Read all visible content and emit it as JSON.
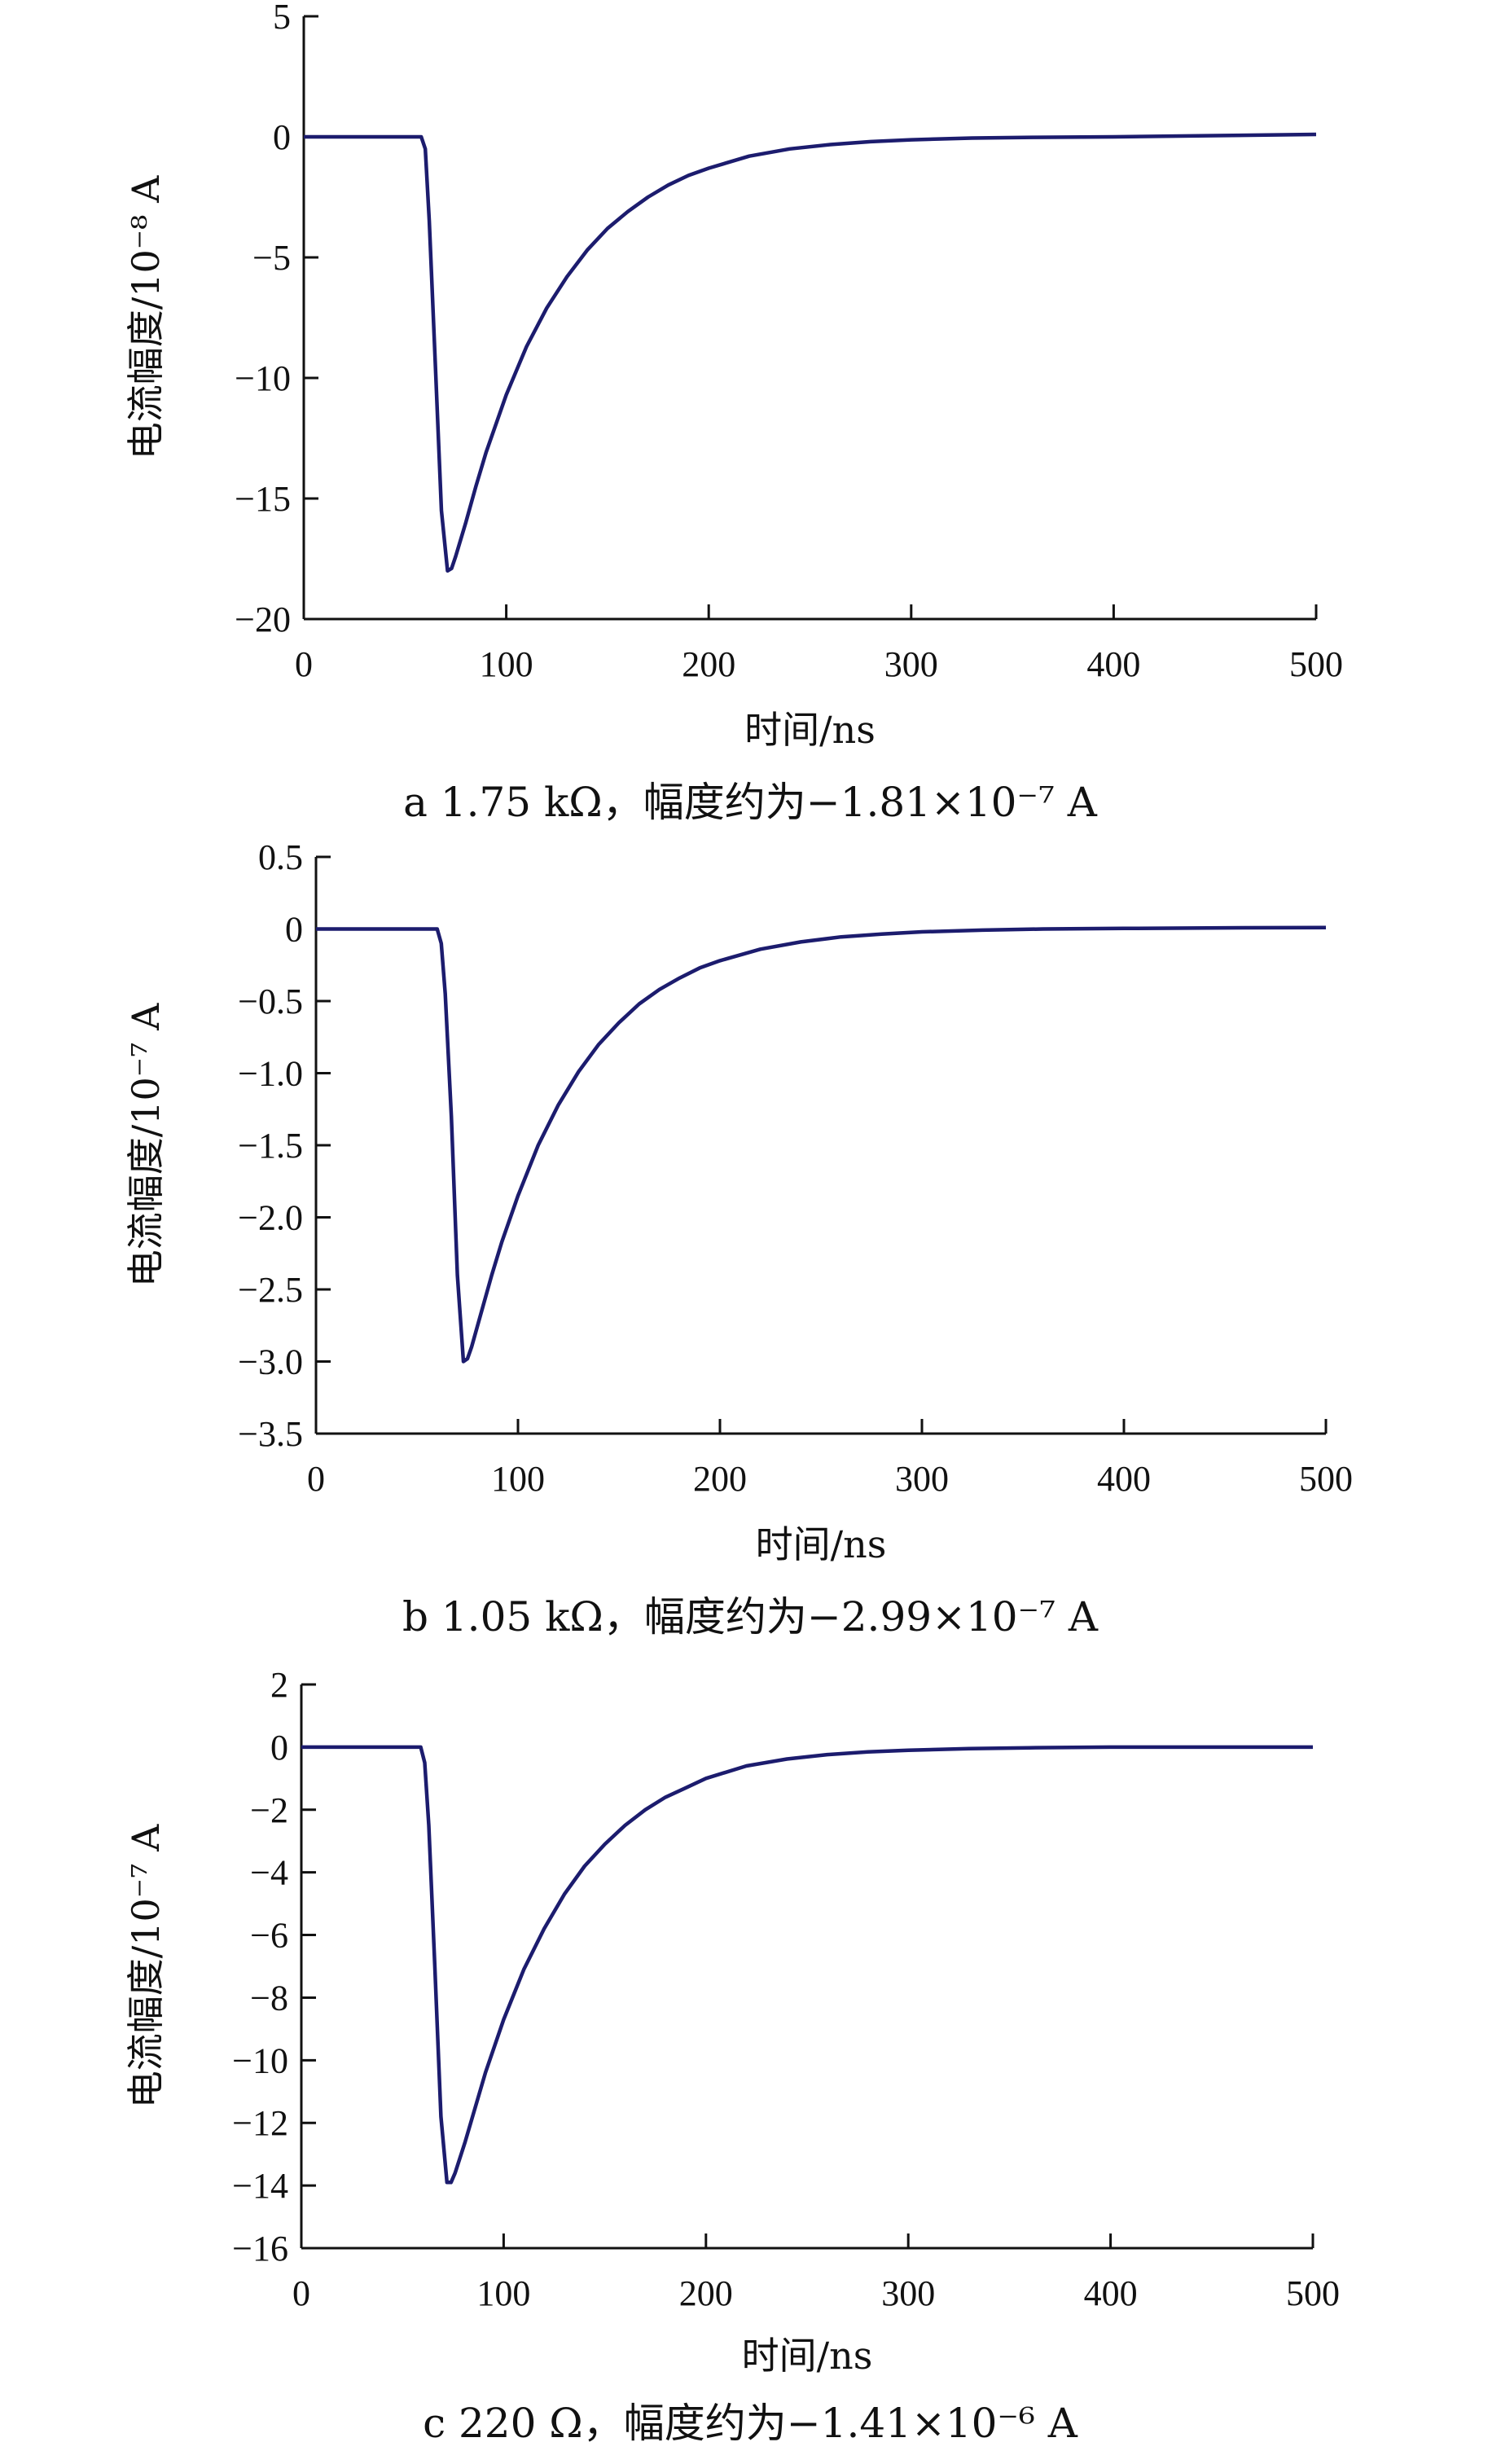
{
  "chart_data": [
    {
      "type": "line",
      "panel": "a",
      "xlabel": "时间/ns",
      "ylabel": "电流幅度/10⁻⁸ A",
      "xlim": [
        0,
        500
      ],
      "ylim": [
        -20,
        5
      ],
      "xticks": [
        "0",
        "100",
        "200",
        "300",
        "400",
        "500"
      ],
      "yticks": [
        "5",
        "0",
        "−5",
        "−10",
        "−15",
        "−20"
      ],
      "caption": "a  1.75 kΩ，幅度约为−1.81×10⁻⁷ A",
      "x": [
        0,
        58,
        60,
        62,
        65,
        68,
        71,
        73,
        75,
        80,
        85,
        90,
        100,
        110,
        120,
        130,
        140,
        150,
        160,
        170,
        180,
        190,
        200,
        220,
        240,
        260,
        280,
        300,
        330,
        360,
        400,
        450,
        500
      ],
      "y": [
        0,
        0,
        -0.5,
        -3.5,
        -9.5,
        -15.5,
        -18.0,
        -17.9,
        -17.4,
        -16.0,
        -14.5,
        -13.1,
        -10.7,
        -8.7,
        -7.1,
        -5.8,
        -4.7,
        -3.8,
        -3.1,
        -2.5,
        -2.0,
        -1.6,
        -1.3,
        -0.8,
        -0.5,
        -0.32,
        -0.2,
        -0.12,
        -0.05,
        -0.02,
        0,
        0.05,
        0.1
      ]
    },
    {
      "type": "line",
      "panel": "b",
      "xlabel": "时间/ns",
      "ylabel": "电流幅度/10⁻⁷ A",
      "xlim": [
        0,
        500
      ],
      "ylim": [
        -3.5,
        0.5
      ],
      "xticks": [
        "0",
        "100",
        "200",
        "300",
        "400",
        "500"
      ],
      "yticks": [
        "0.5",
        "0",
        "−0.5",
        "−1.0",
        "−1.5",
        "−2.0",
        "−2.5",
        "−3.0",
        "−3.5"
      ],
      "caption": "b  1.05 kΩ，幅度约为−2.99×10⁻⁷ A",
      "x": [
        0,
        60,
        62,
        64,
        67,
        70,
        73,
        75,
        77,
        82,
        87,
        92,
        100,
        110,
        120,
        130,
        140,
        150,
        160,
        170,
        180,
        190,
        200,
        220,
        240,
        260,
        280,
        300,
        330,
        360,
        400,
        450,
        500
      ],
      "y": [
        0,
        0,
        -0.1,
        -0.45,
        -1.3,
        -2.4,
        -3.0,
        -2.98,
        -2.9,
        -2.65,
        -2.4,
        -2.17,
        -1.85,
        -1.5,
        -1.22,
        -0.99,
        -0.8,
        -0.65,
        -0.52,
        -0.42,
        -0.34,
        -0.27,
        -0.22,
        -0.14,
        -0.09,
        -0.055,
        -0.035,
        -0.02,
        -0.008,
        0,
        0.004,
        0.008,
        0.01
      ]
    },
    {
      "type": "line",
      "panel": "c",
      "xlabel": "时间/ns",
      "ylabel": "电流幅度/10⁻⁷ A",
      "xlim": [
        0,
        500
      ],
      "ylim": [
        -16,
        2
      ],
      "xticks": [
        "0",
        "100",
        "200",
        "300",
        "400",
        "500"
      ],
      "yticks": [
        "2",
        "0",
        "−2",
        "−4",
        "−6",
        "−8",
        "−10",
        "−12",
        "−14",
        "−16"
      ],
      "caption": "c  220 Ω，幅度约为−1.41×10⁻⁶ A",
      "x": [
        0,
        59,
        61,
        63,
        66,
        69,
        72,
        74,
        76,
        81,
        86,
        91,
        100,
        110,
        120,
        130,
        140,
        150,
        160,
        170,
        180,
        190,
        200,
        220,
        240,
        260,
        280,
        300,
        330,
        360,
        400,
        450,
        500
      ],
      "y": [
        0,
        0,
        -0.5,
        -2.5,
        -7.0,
        -11.8,
        -13.9,
        -13.9,
        -13.6,
        -12.6,
        -11.5,
        -10.4,
        -8.7,
        -7.1,
        -5.8,
        -4.7,
        -3.8,
        -3.1,
        -2.5,
        -2.0,
        -1.6,
        -1.3,
        -1.0,
        -0.6,
        -0.38,
        -0.24,
        -0.15,
        -0.1,
        -0.05,
        -0.02,
        0,
        0,
        0
      ]
    }
  ]
}
